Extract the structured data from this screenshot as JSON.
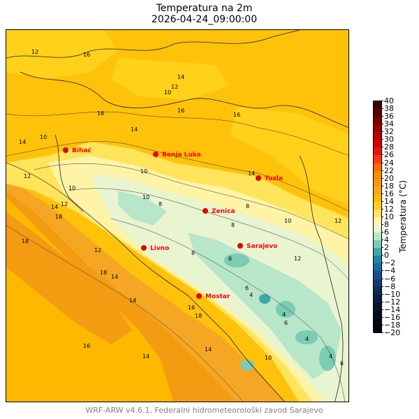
{
  "title": "Temperatura na 2m",
  "subtitle": "2026-04-24_09:00:00",
  "footer": "WRF-ARW v4.6.1, Federalni hidrometeorološki zavod Sarajevo",
  "colorbar": {
    "label": "Temperatura (°C)",
    "ticks": [
      "40",
      "38",
      "36",
      "34",
      "32",
      "30",
      "28",
      "26",
      "24",
      "22",
      "20",
      "18",
      "16",
      "14",
      "12",
      "10",
      "8",
      "6",
      "4",
      "2",
      "0",
      "−2",
      "−4",
      "−6",
      "−8",
      "−10",
      "−12",
      "−14",
      "−16",
      "−18",
      "−20"
    ],
    "colors": {
      "40": "#3b0000",
      "38": "#5a0000",
      "36": "#7a0000",
      "34": "#9a0000",
      "32": "#b80000",
      "30": "#d40000",
      "28": "#ee1010",
      "26": "#ff3a10",
      "24": "#ff6a00",
      "22": "#ff8c00",
      "20": "#f59a10",
      "18": "#f5a623",
      "16": "#ffb800",
      "14": "#ffd11a",
      "12": "#ffe45c",
      "10": "#fff3a8",
      "8": "#e8f5d0",
      "6": "#b8e6c8",
      "4": "#7ccbb4",
      "2": "#3fa7a8",
      "0": "#1f86a6",
      "-2": "#1869a0",
      "-4": "#154f8a",
      "-6": "#123a70",
      "-8": "#0e2a55",
      "-10": "#0a1d40",
      "-12": "#07142e",
      "-14": "#050d20",
      "-16": "#030814",
      "-18": "#01040a"
    }
  },
  "cities": [
    {
      "name": "Bihać"
    },
    {
      "name": "Banja Luka"
    },
    {
      "name": "Tuzla"
    },
    {
      "name": "Zenica"
    },
    {
      "name": "Livno"
    },
    {
      "name": "Sarajevo"
    },
    {
      "name": "Mostar"
    }
  ],
  "contour_labels": [
    "12",
    "16",
    "14",
    "12",
    "10",
    "16",
    "16",
    "16",
    "14",
    "10",
    "14",
    "12",
    "10",
    "14",
    "10",
    "14",
    "12",
    "10",
    "18",
    "18",
    "8",
    "12",
    "14",
    "14",
    "16",
    "18",
    "18",
    "8",
    "10",
    "12",
    "8",
    "6",
    "8",
    "6",
    "4",
    "4",
    "6",
    "4",
    "4",
    "6",
    "10",
    "12",
    "16",
    "14",
    "14"
  ]
}
